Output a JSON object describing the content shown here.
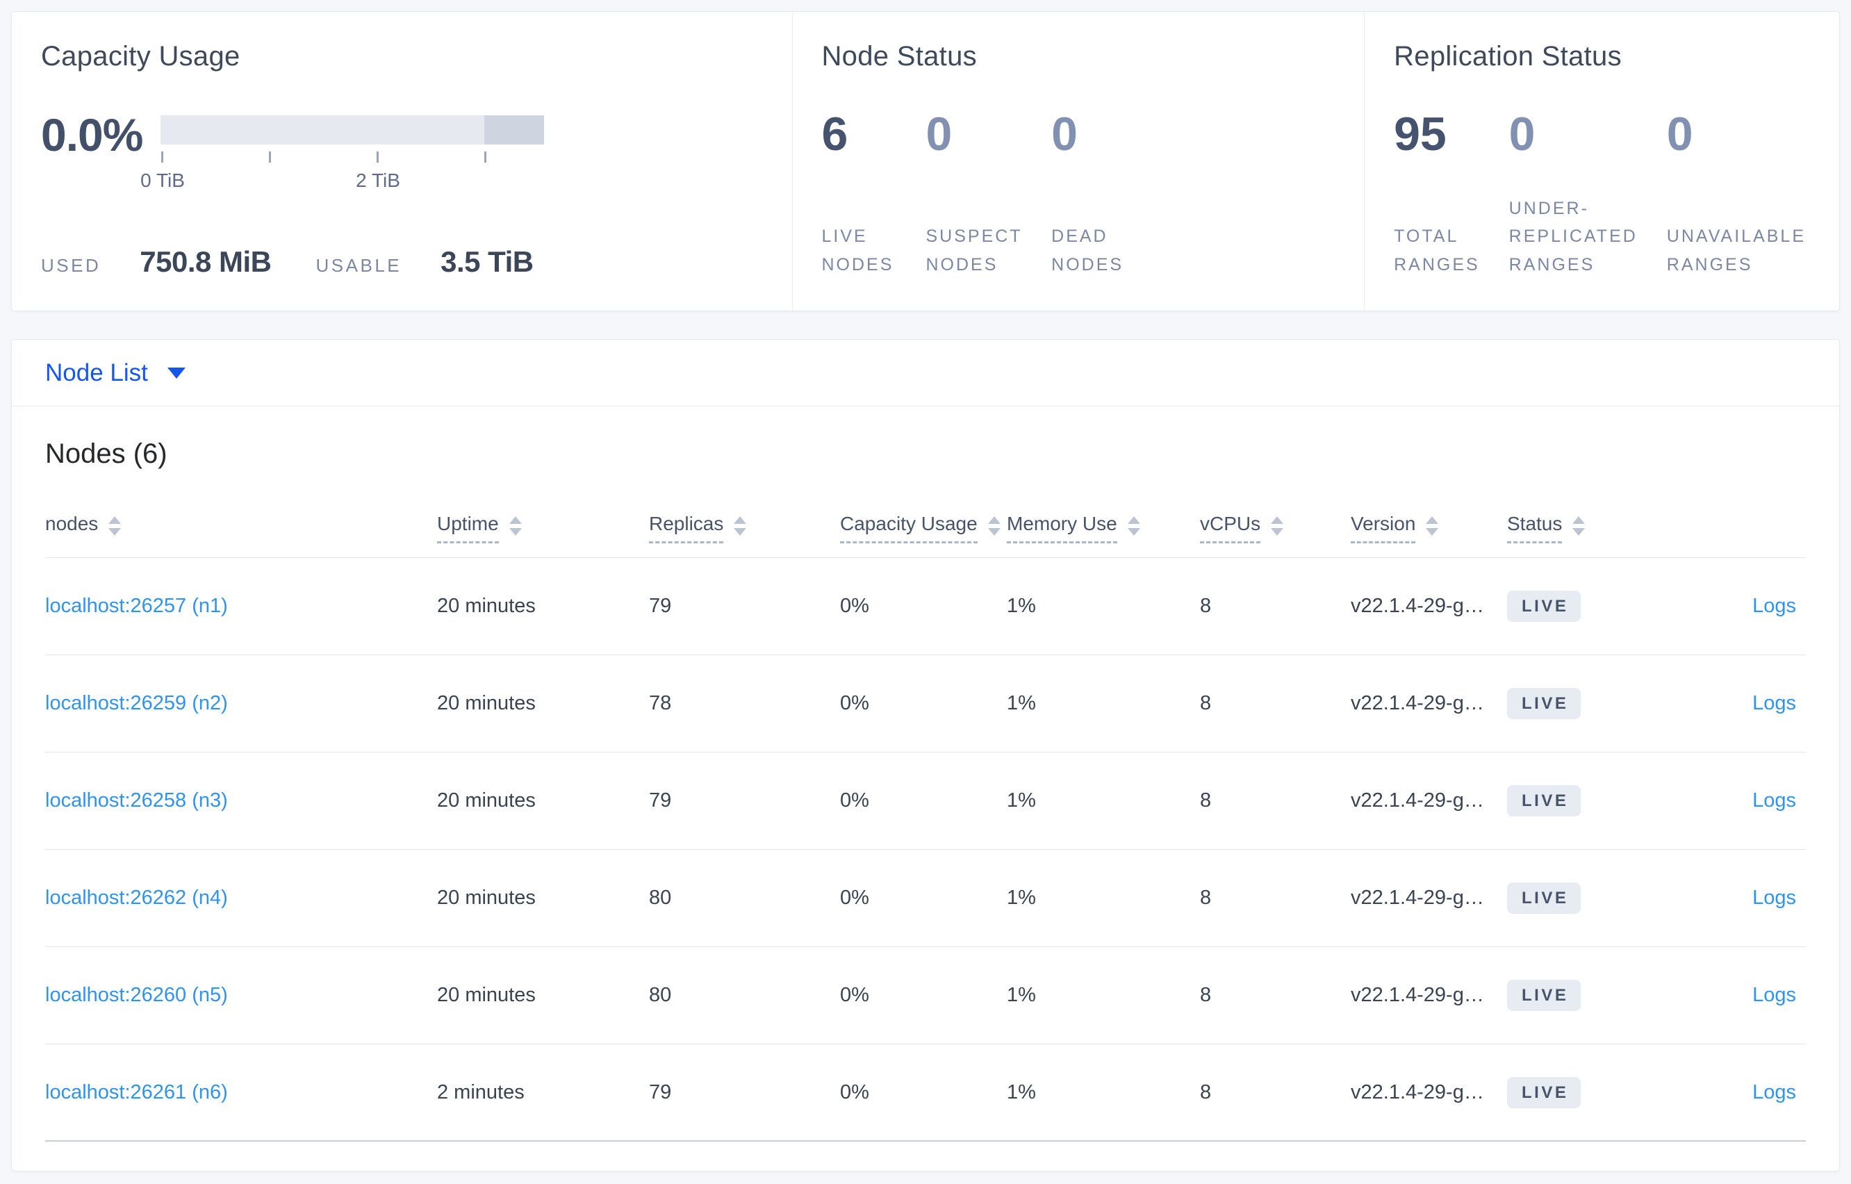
{
  "summary": {
    "capacity": {
      "title": "Capacity Usage",
      "percent": "0.0%",
      "tick_labels": [
        "0 TiB",
        "2 TiB"
      ],
      "used_label": "USED",
      "used_value": "750.8 MiB",
      "usable_label": "USABLE",
      "usable_value": "3.5 TiB"
    },
    "node_status": {
      "title": "Node Status",
      "stats": [
        {
          "value": "6",
          "label": "LIVE NODES"
        },
        {
          "value": "0",
          "label": "SUSPECT NODES"
        },
        {
          "value": "0",
          "label": "DEAD NODES"
        }
      ]
    },
    "replication": {
      "title": "Replication Status",
      "stats": [
        {
          "value": "95",
          "label": "TOTAL RANGES"
        },
        {
          "value": "0",
          "label": "UNDER-REPLICATED RANGES"
        },
        {
          "value": "0",
          "label": "UNAVAILABLE RANGES"
        }
      ]
    }
  },
  "view_selector": {
    "label": "Node List"
  },
  "table": {
    "title": "Nodes (6)",
    "columns": [
      {
        "label": "nodes"
      },
      {
        "label": "Uptime"
      },
      {
        "label": "Replicas"
      },
      {
        "label": "Capacity Usage"
      },
      {
        "label": "Memory Use"
      },
      {
        "label": "vCPUs"
      },
      {
        "label": "Version"
      },
      {
        "label": "Status"
      }
    ],
    "rows": [
      {
        "node": "localhost:26257 (n1)",
        "uptime": "20 minutes",
        "replicas": "79",
        "capacity": "0%",
        "memory": "1%",
        "vcpus": "8",
        "version": "v22.1.4-29-g…",
        "status": "LIVE",
        "logs": "Logs"
      },
      {
        "node": "localhost:26259 (n2)",
        "uptime": "20 minutes",
        "replicas": "78",
        "capacity": "0%",
        "memory": "1%",
        "vcpus": "8",
        "version": "v22.1.4-29-g…",
        "status": "LIVE",
        "logs": "Logs"
      },
      {
        "node": "localhost:26258 (n3)",
        "uptime": "20 minutes",
        "replicas": "79",
        "capacity": "0%",
        "memory": "1%",
        "vcpus": "8",
        "version": "v22.1.4-29-g…",
        "status": "LIVE",
        "logs": "Logs"
      },
      {
        "node": "localhost:26262 (n4)",
        "uptime": "20 minutes",
        "replicas": "80",
        "capacity": "0%",
        "memory": "1%",
        "vcpus": "8",
        "version": "v22.1.4-29-g…",
        "status": "LIVE",
        "logs": "Logs"
      },
      {
        "node": "localhost:26260 (n5)",
        "uptime": "20 minutes",
        "replicas": "80",
        "capacity": "0%",
        "memory": "1%",
        "vcpus": "8",
        "version": "v22.1.4-29-g…",
        "status": "LIVE",
        "logs": "Logs"
      },
      {
        "node": "localhost:26261 (n6)",
        "uptime": "2 minutes",
        "replicas": "79",
        "capacity": "0%",
        "memory": "1%",
        "vcpus": "8",
        "version": "v22.1.4-29-g…",
        "status": "LIVE",
        "logs": "Logs"
      }
    ]
  },
  "colors": {
    "accent_blue": "#1557ec",
    "link_blue": "#2e93f2",
    "stat_dark": "#46536e",
    "stat_light": "#8290b1",
    "bar_light": "#e6e9f0",
    "bar_dark": "#ced4e0",
    "badge_bg": "#e7ebf2"
  }
}
